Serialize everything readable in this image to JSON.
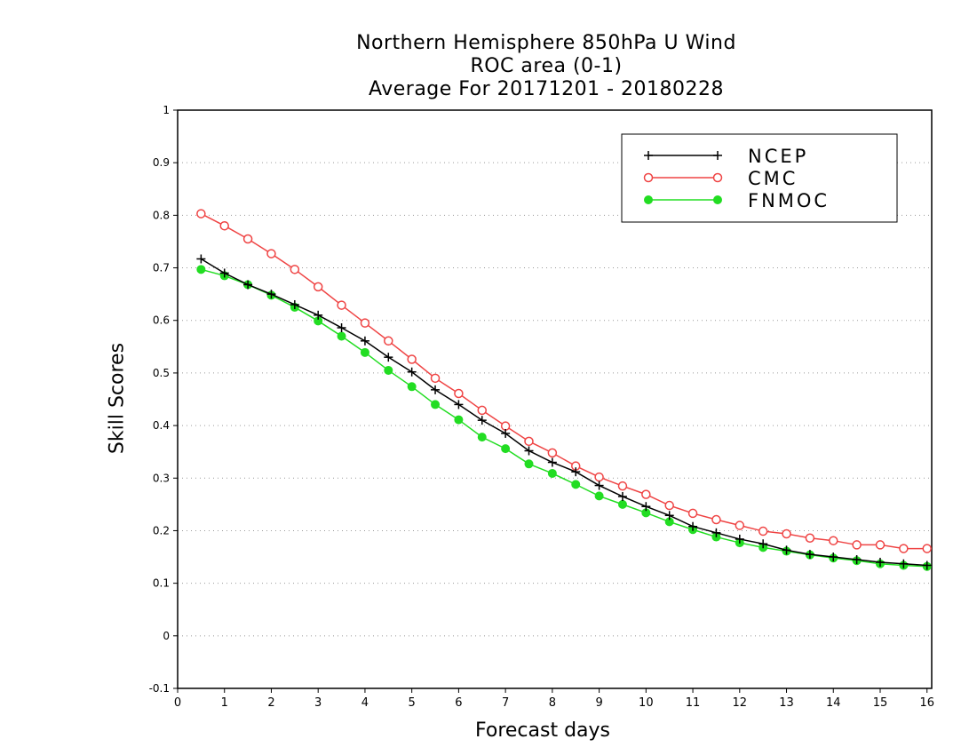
{
  "chart_data": {
    "type": "line",
    "title": [
      "Northern Hemisphere 850hPa U Wind",
      "ROC area (0-1)",
      "Average For 20171201 - 20180228"
    ],
    "xlabel": "Forecast days",
    "ylabel": "Skill Scores",
    "xlim": [
      0,
      16.1
    ],
    "ylim": [
      -0.1,
      1
    ],
    "x_ticks": [
      "0",
      "1",
      "2",
      "3",
      "4",
      "5",
      "6",
      "7",
      "8",
      "9",
      "10",
      "11",
      "12",
      "13",
      "14",
      "15",
      "16"
    ],
    "y_ticks": [
      "-0.1",
      "0",
      "0.1",
      "0.2",
      "0.3",
      "0.4",
      "0.5",
      "0.6",
      "0.7",
      "0.8",
      "0.9",
      "1"
    ],
    "grid": "horizontal dotted",
    "legend_position": "top-right",
    "x": [
      0.5,
      1,
      1.5,
      2,
      2.5,
      3,
      3.5,
      4,
      4.5,
      5,
      5.5,
      6,
      6.5,
      7,
      7.5,
      8,
      8.5,
      9,
      9.5,
      10,
      10.5,
      11,
      11.5,
      12,
      12.5,
      13,
      13.5,
      14,
      14.5,
      15,
      15.5,
      16
    ],
    "series": [
      {
        "name": "NCEP",
        "color": "#000000",
        "marker": "plus",
        "values": [
          0.717,
          0.69,
          0.668,
          0.65,
          0.63,
          0.61,
          0.586,
          0.561,
          0.53,
          0.502,
          0.468,
          0.44,
          0.41,
          0.385,
          0.352,
          0.33,
          0.312,
          0.286,
          0.265,
          0.246,
          0.229,
          0.208,
          0.196,
          0.184,
          0.175,
          0.163,
          0.155,
          0.15,
          0.145,
          0.14,
          0.137,
          0.134
        ]
      },
      {
        "name": "CMC",
        "color": "#ef4444",
        "marker": "open-circle",
        "values": [
          0.803,
          0.78,
          0.755,
          0.727,
          0.697,
          0.664,
          0.629,
          0.595,
          0.561,
          0.526,
          0.49,
          0.461,
          0.429,
          0.399,
          0.37,
          0.348,
          0.323,
          0.302,
          0.285,
          0.269,
          0.248,
          0.233,
          0.221,
          0.21,
          0.199,
          0.194,
          0.186,
          0.181,
          0.173,
          0.173,
          0.166,
          0.166
        ]
      },
      {
        "name": "FNMOC",
        "color": "#22dd22",
        "marker": "filled-circle",
        "values": [
          0.697,
          0.685,
          0.668,
          0.648,
          0.625,
          0.599,
          0.57,
          0.539,
          0.505,
          0.474,
          0.44,
          0.411,
          0.378,
          0.356,
          0.327,
          0.309,
          0.288,
          0.266,
          0.25,
          0.234,
          0.217,
          0.202,
          0.188,
          0.177,
          0.168,
          0.161,
          0.154,
          0.148,
          0.143,
          0.137,
          0.134,
          0.132
        ]
      }
    ]
  }
}
